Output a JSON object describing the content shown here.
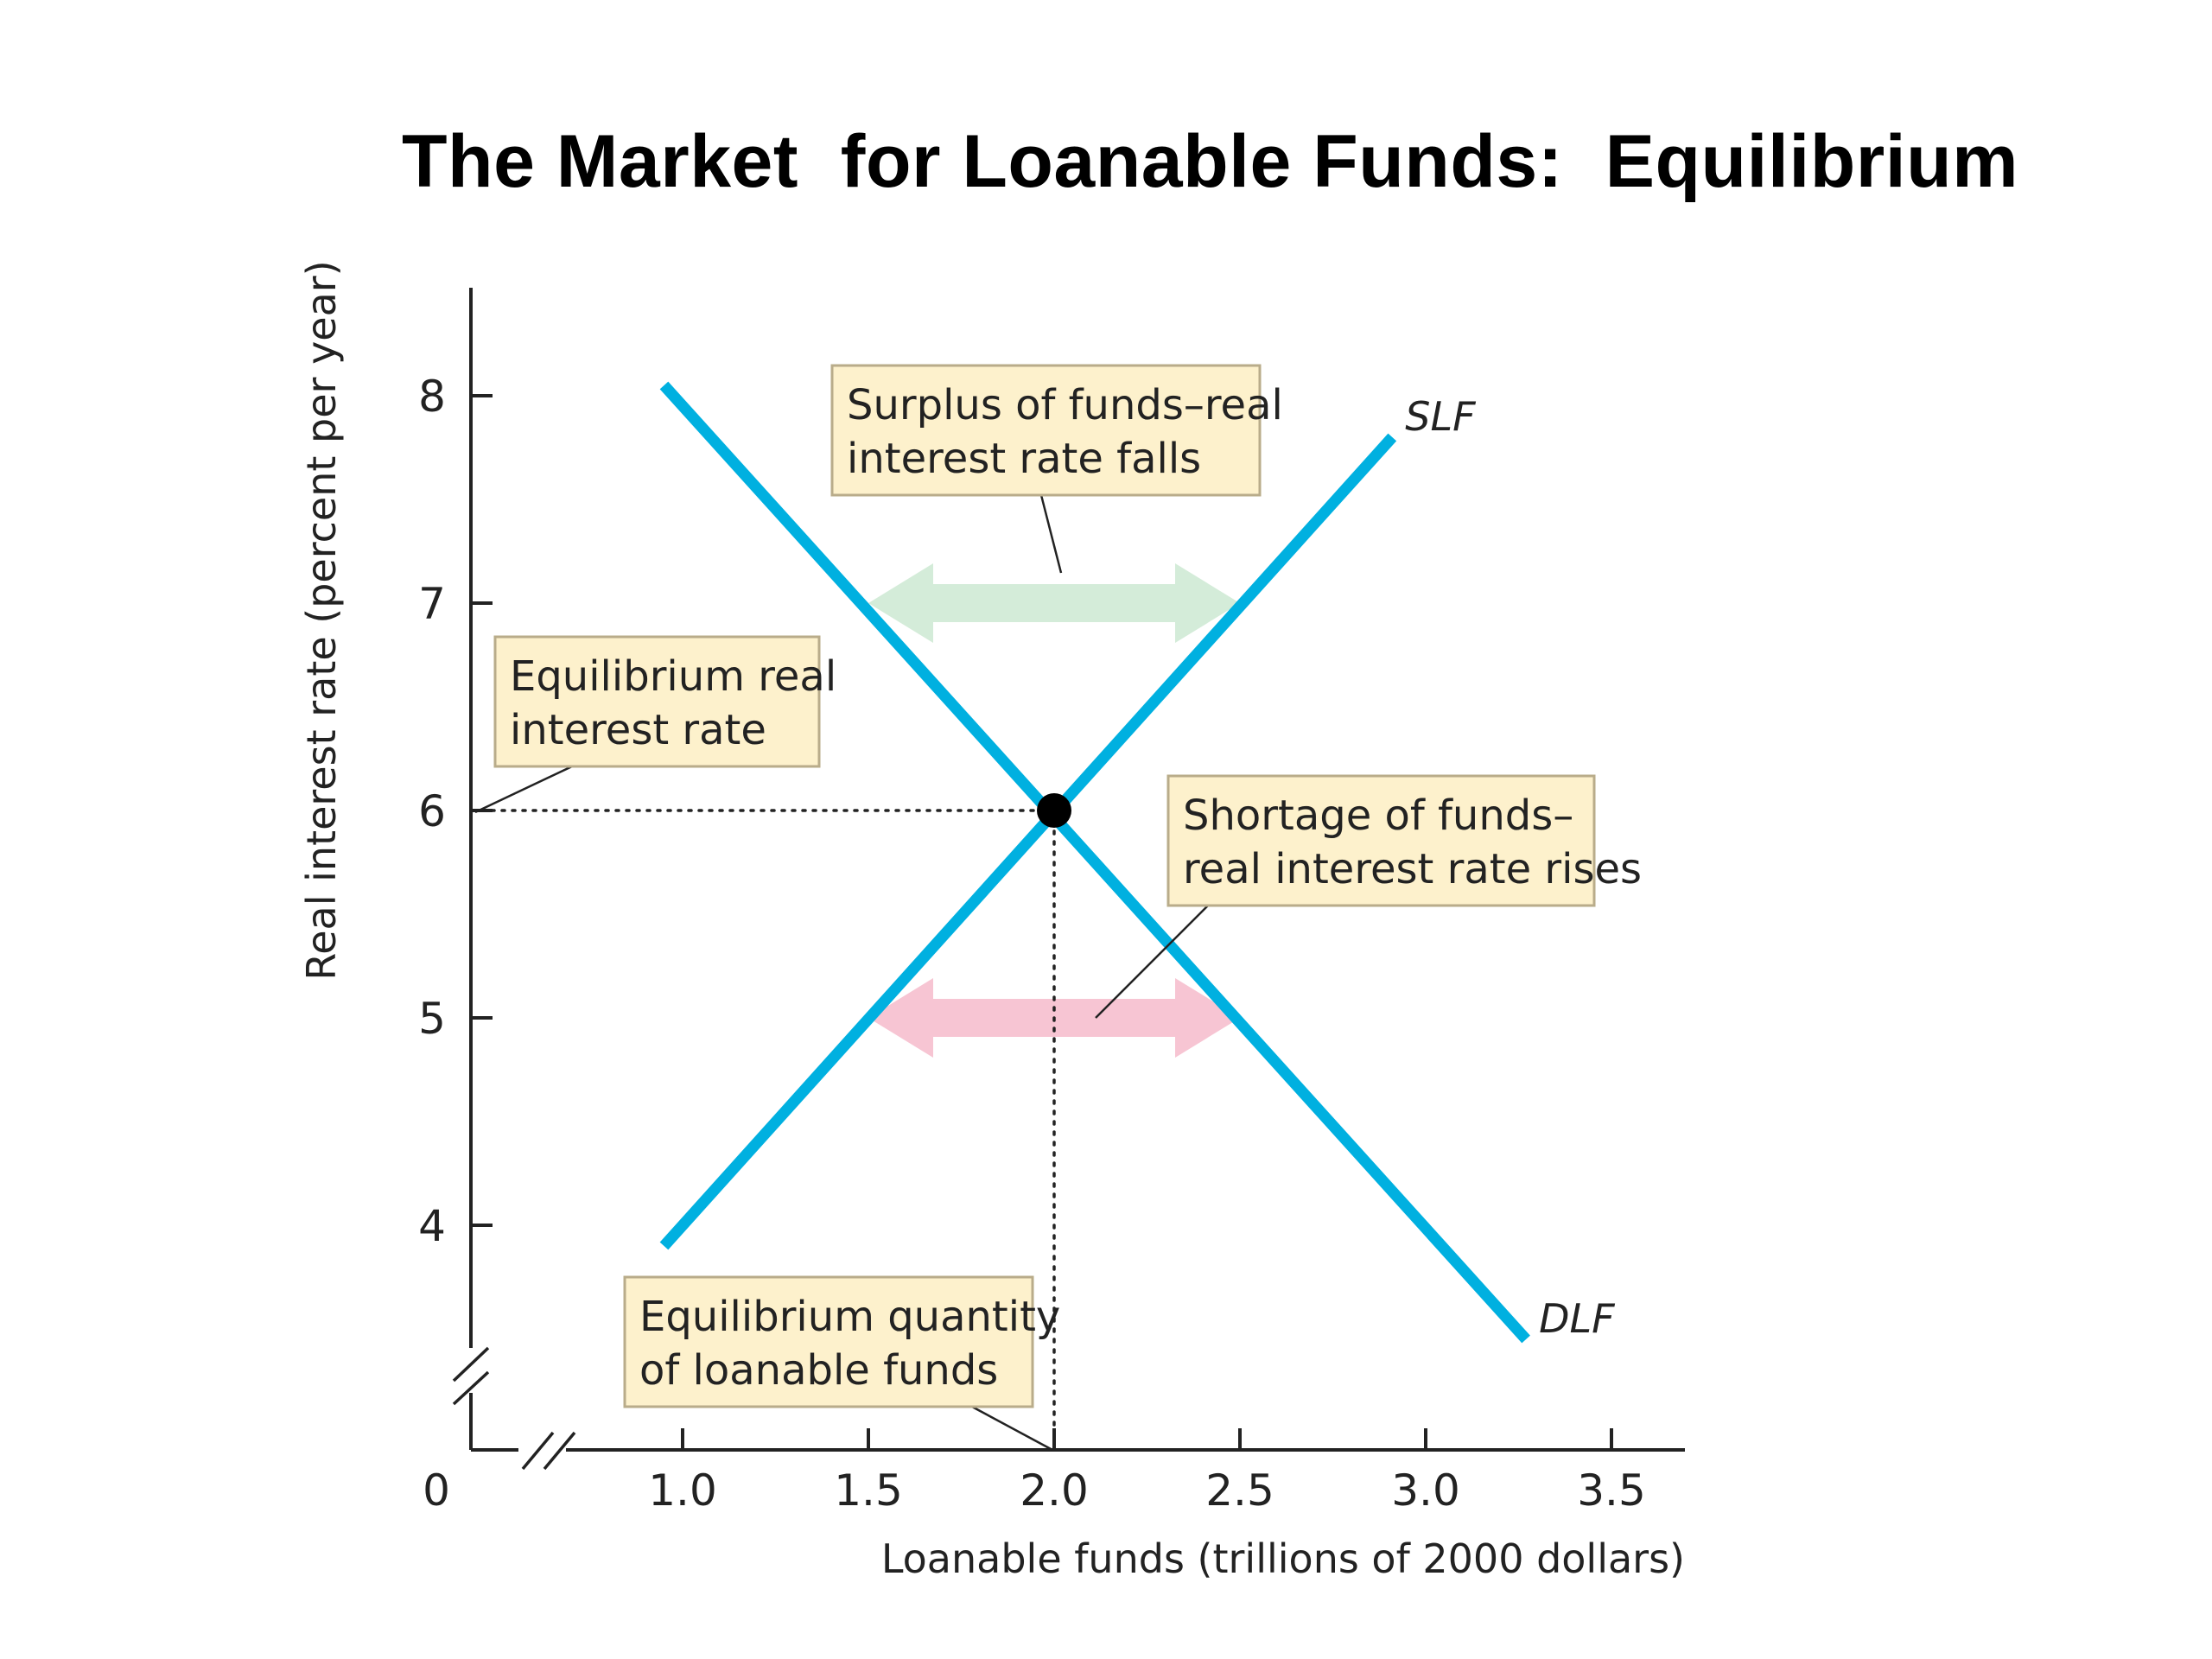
{
  "title": "The Market  for Loanable Funds:  Equilibrium",
  "chart_data": {
    "type": "line",
    "xlabel": "Loanable funds (trillions of 2000 dollars)",
    "ylabel": "Real interest rate (percent per year)",
    "origin_label": "0",
    "x_ticks": [
      "1.0",
      "1.5",
      "2.0",
      "2.5",
      "3.0",
      "3.5"
    ],
    "y_ticks": [
      "4",
      "5",
      "6",
      "7",
      "8"
    ],
    "xlim": [
      0.5,
      3.75
    ],
    "ylim": [
      3.0,
      8.5
    ],
    "axis_breaks": true,
    "grid": false,
    "series": [
      {
        "name": "SLF",
        "color": "#00b0e0",
        "x": [
          0.95,
          2.91
        ],
        "y": [
          3.9,
          7.8
        ]
      },
      {
        "name": "DLF",
        "color": "#00b0e0",
        "x": [
          0.95,
          3.27
        ],
        "y": [
          8.05,
          3.45
        ]
      }
    ],
    "equilibrium": {
      "x": 2.0,
      "y": 6.0
    },
    "arrows": [
      {
        "y": 7.0,
        "x_from": 1.5,
        "x_to": 2.5,
        "color": "#d4ecd9"
      },
      {
        "y": 5.0,
        "x_from": 1.5,
        "x_to": 2.5,
        "color": "#f7c5d3"
      }
    ],
    "annotations": [
      {
        "lines": [
          "Surplus of funds–real",
          "interest rate falls"
        ]
      },
      {
        "lines": [
          "Equilibrium real",
          "interest rate"
        ]
      },
      {
        "lines": [
          "Shortage of funds–",
          "real interest rate rises"
        ]
      },
      {
        "lines": [
          "Equilibrium quantity",
          "of loanable funds"
        ]
      }
    ],
    "annotation_fill": "#fdf1cc",
    "annotation_border": "#b9ac8a"
  }
}
